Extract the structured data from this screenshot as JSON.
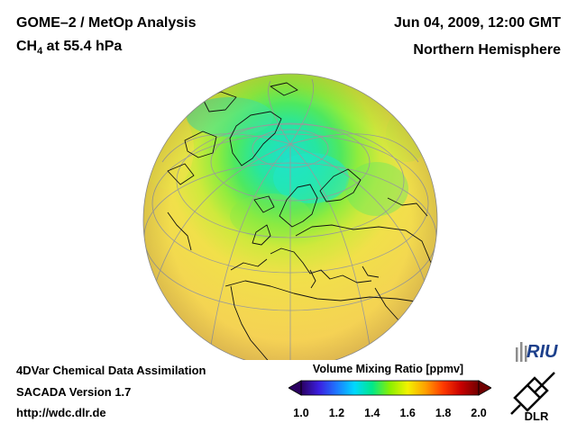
{
  "header": {
    "title_line1": "GOME–2 / MetOp Analysis",
    "species": "CH",
    "species_sub": "4",
    "level": " at 55.4 hPa",
    "datetime": "Jun 04, 2009, 12:00 GMT",
    "hemisphere": "Northern Hemisphere"
  },
  "footer": {
    "line1": "4DVar Chemical Data Assimilation",
    "line2": "SACADA Version 1.7",
    "line3": "http://wdc.dlr.de"
  },
  "colorbar": {
    "label": "Volume Mixing Ratio [ppmv]",
    "ticks": [
      "1.0",
      "1.2",
      "1.4",
      "1.6",
      "1.8",
      "2.0"
    ],
    "range": [
      1.0,
      2.0
    ],
    "colors": [
      "#2a0060",
      "#3b1ee0",
      "#1e78ff",
      "#00d8ff",
      "#00e88a",
      "#8af000",
      "#f2f200",
      "#ffa000",
      "#ff3a00",
      "#c80000",
      "#700000"
    ]
  },
  "logos": {
    "riu": "RIU",
    "dlr": "DLR"
  },
  "map": {
    "projection": "orthographic",
    "center_lat": 60,
    "center_lon": 0,
    "ocean_colour": "#f6d25a",
    "land_outline": "#111111"
  }
}
